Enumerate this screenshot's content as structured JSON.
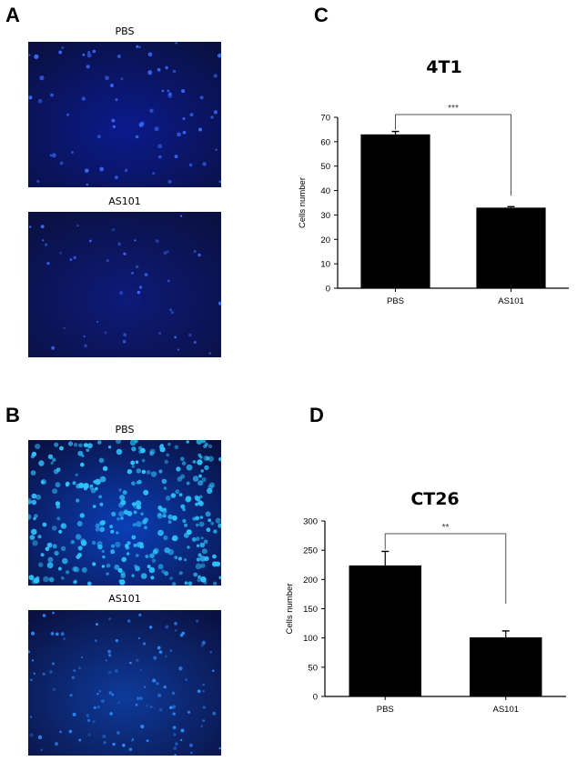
{
  "panels": {
    "A": {
      "letter": "A",
      "top_label": "PBS",
      "bottom_label": "AS101",
      "top_bg": "#0a1a8c",
      "bottom_bg": "#0d1a78",
      "dot_color": "#3a6bff"
    },
    "B": {
      "letter": "B",
      "top_label": "PBS",
      "bottom_label": "AS101",
      "top_bg": "#0a3fb8",
      "bottom_bg": "#0e3a9a",
      "dot_color": "#2fc4ff"
    },
    "C": {
      "letter": "C",
      "title": "4T1"
    },
    "D": {
      "letter": "D",
      "title": "CT26"
    }
  },
  "chart_data": [
    {
      "type": "bar",
      "title": "4T1",
      "xlabel": "",
      "ylabel": "Cells number",
      "categories": [
        "PBS",
        "AS101"
      ],
      "values": [
        63,
        33
      ],
      "errors": [
        1.2,
        0.4
      ],
      "ylim": [
        0,
        70
      ],
      "yticks": [
        0,
        10,
        20,
        30,
        40,
        50,
        60,
        70
      ],
      "significance": "***",
      "bar_color": "#000000",
      "grid": false
    },
    {
      "type": "bar",
      "title": "CT26",
      "xlabel": "",
      "ylabel": "Cells number",
      "categories": [
        "PBS",
        "AS101"
      ],
      "values": [
        224,
        101
      ],
      "errors": [
        24,
        11
      ],
      "ylim": [
        0,
        300
      ],
      "yticks": [
        0,
        50,
        100,
        150,
        200,
        250,
        300
      ],
      "significance": "**",
      "bar_color": "#000000",
      "grid": false
    }
  ]
}
